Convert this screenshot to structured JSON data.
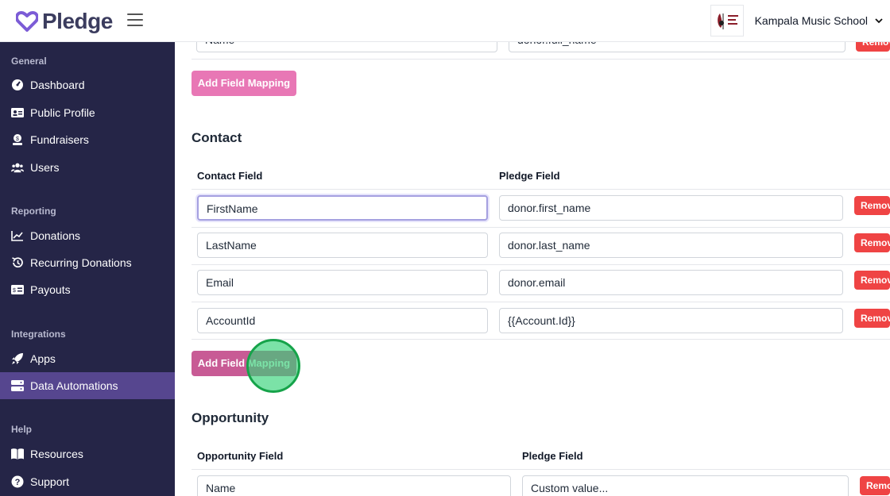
{
  "app": {
    "logo_text": "Pledge",
    "brand_color": "#7c5cd6"
  },
  "header": {
    "org_name": "Kampala Music School",
    "org_logo_text": "Kampala Music School"
  },
  "sidebar": {
    "sections": [
      {
        "title": "General",
        "items": [
          {
            "label": "Dashboard",
            "icon": "dashboard-icon"
          },
          {
            "label": "Public Profile",
            "icon": "id-card-icon"
          },
          {
            "label": "Fundraisers",
            "icon": "fundraiser-icon"
          },
          {
            "label": "Users",
            "icon": "users-icon"
          }
        ]
      },
      {
        "title": "Reporting",
        "items": [
          {
            "label": "Donations",
            "icon": "chart-line-icon"
          },
          {
            "label": "Recurring Donations",
            "icon": "history-icon"
          },
          {
            "label": "Payouts",
            "icon": "money-check-icon"
          }
        ]
      },
      {
        "title": "Integrations",
        "items": [
          {
            "label": "Apps",
            "icon": "rocket-icon"
          },
          {
            "label": "Data Automations",
            "icon": "server-icon",
            "active": true
          }
        ]
      },
      {
        "title": "Help",
        "items": [
          {
            "label": "Resources",
            "icon": "book-icon"
          },
          {
            "label": "Support",
            "icon": "question-icon"
          }
        ]
      }
    ]
  },
  "main": {
    "top_partial": {
      "left_value": "Name",
      "right_value": "donor.full_name"
    },
    "add_field_mapping_label": "Add Field Mapping",
    "remove_label": "Remove",
    "contact": {
      "title": "Contact",
      "col1": "Contact Field",
      "col2": "Pledge Field",
      "rows": [
        {
          "field": "FirstName",
          "pledge": "donor.first_name"
        },
        {
          "field": "LastName",
          "pledge": "donor.last_name"
        },
        {
          "field": "Email",
          "pledge": "donor.email"
        },
        {
          "field": "AccountId",
          "pledge": "{{Account.Id}}"
        }
      ]
    },
    "opportunity": {
      "title": "Opportunity",
      "col1": "Opportunity Field",
      "col2": "Pledge Field",
      "rows": [
        {
          "field": "Name",
          "pledge": "Custom value..."
        }
      ]
    }
  },
  "colors": {
    "sidebar_bg": "#252547",
    "sidebar_active": "#56468f",
    "add_button": "#e877b5",
    "remove_button": "#ef4444"
  }
}
